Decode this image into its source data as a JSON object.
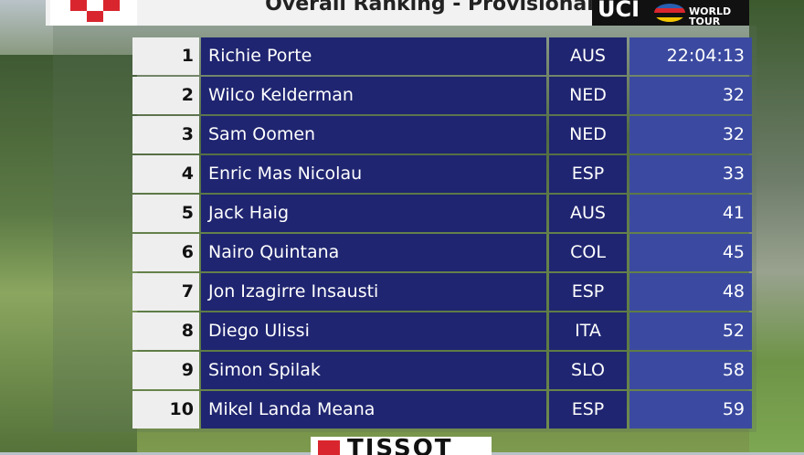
{
  "header": {
    "title": "Overall Ranking - Provisional",
    "logo": "UCI",
    "logo_sub": "WORLD TOUR"
  },
  "table": {
    "rows": [
      [
        "1",
        "Richie Porte",
        "AUS",
        "22:04:13"
      ],
      [
        "2",
        "Wilco Kelderman",
        "NED",
        "32"
      ],
      [
        "3",
        "Sam Oomen",
        "NED",
        "32"
      ],
      [
        "4",
        "Enric Mas Nicolau",
        "ESP",
        "33"
      ],
      [
        "5",
        "Jack Haig",
        "AUS",
        "41"
      ],
      [
        "6",
        "Nairo Quintana",
        "COL",
        "45"
      ],
      [
        "7",
        "Jon Izagirre Insausti",
        "ESP",
        "48"
      ],
      [
        "8",
        "Diego Ulissi",
        "ITA",
        "52"
      ],
      [
        "9",
        "Simon Spilak",
        "SLO",
        "58"
      ],
      [
        "10",
        "Mikel Landa Meana",
        "ESP",
        "59"
      ]
    ]
  },
  "footer": {
    "sponsor": "TISSOT"
  }
}
